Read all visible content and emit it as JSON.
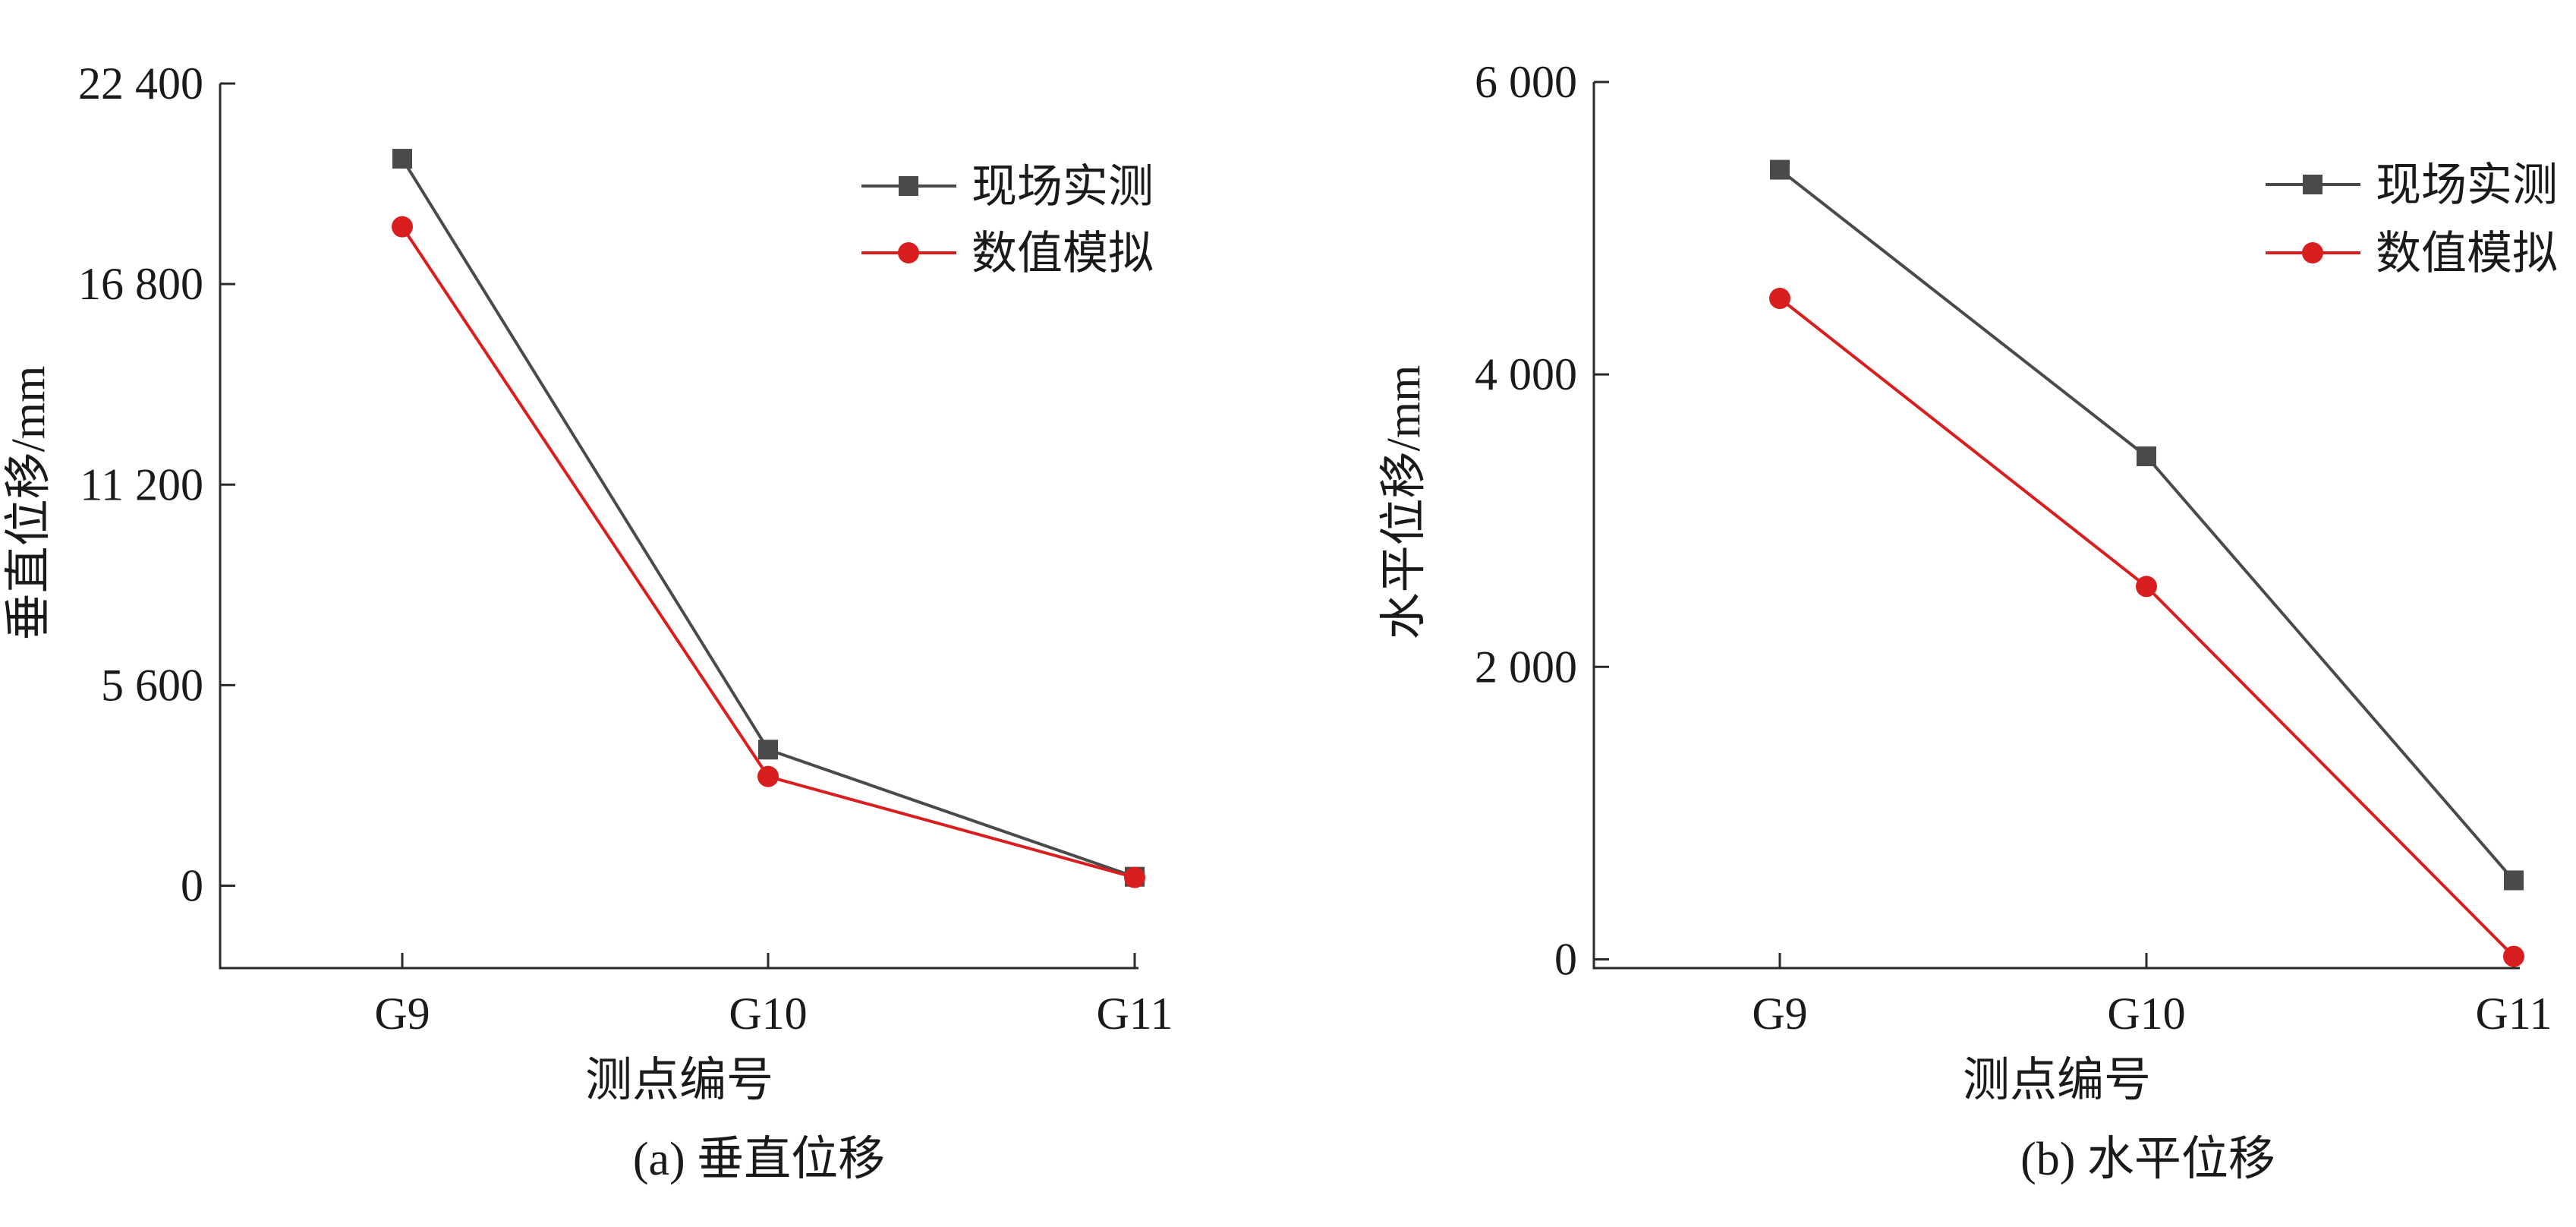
{
  "chart_data": [
    {
      "type": "line",
      "caption": "(a) 垂直位移",
      "xlabel": "测点编号",
      "ylabel": "垂直位移/mm",
      "categories": [
        "G9",
        "G10",
        "G11"
      ],
      "ylim": [
        -2300,
        22400
      ],
      "yticks": [
        0,
        5600,
        11200,
        16800,
        22400
      ],
      "ytick_labels": [
        "0",
        "5 600",
        "11 200",
        "16 800",
        "22 400"
      ],
      "legend_position": "top-right",
      "grid": false,
      "series": [
        {
          "name": "现场实测",
          "marker": "square",
          "color": "#4a4a4a",
          "values": [
            20300,
            3800,
            250
          ]
        },
        {
          "name": "数值模拟",
          "marker": "circle",
          "color": "#d81e1e",
          "values": [
            18400,
            3050,
            230
          ]
        }
      ]
    },
    {
      "type": "line",
      "caption": "(b) 水平位移",
      "xlabel": "测点编号",
      "ylabel": "水平位移/mm",
      "categories": [
        "G9",
        "G10",
        "G11"
      ],
      "ylim": [
        -60,
        6000
      ],
      "yticks": [
        0,
        2000,
        4000,
        6000
      ],
      "ytick_labels": [
        "0",
        "2 000",
        "4 000",
        "6 000"
      ],
      "legend_position": "top-right",
      "grid": false,
      "series": [
        {
          "name": "现场实测",
          "marker": "square",
          "color": "#4a4a4a",
          "values": [
            5400,
            3440,
            540
          ]
        },
        {
          "name": "数值模拟",
          "marker": "circle",
          "color": "#d81e1e",
          "values": [
            4520,
            2550,
            20
          ]
        }
      ]
    }
  ]
}
